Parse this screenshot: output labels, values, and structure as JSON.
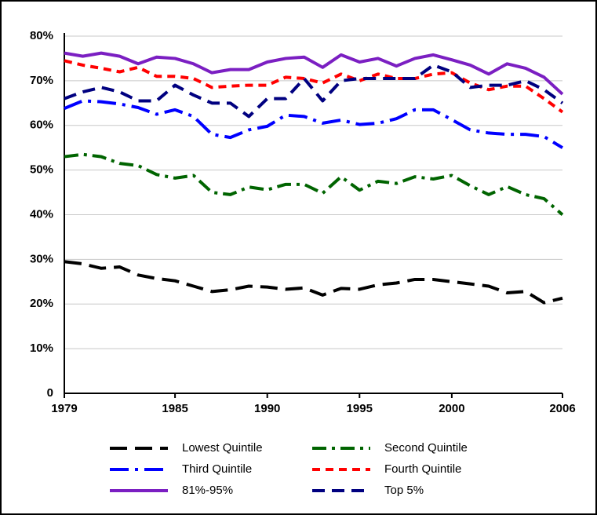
{
  "chart_data": {
    "type": "line",
    "x": [
      1979,
      1980,
      1981,
      1982,
      1983,
      1984,
      1985,
      1986,
      1987,
      1988,
      1989,
      1990,
      1991,
      1992,
      1993,
      1994,
      1995,
      1996,
      1997,
      1998,
      1999,
      2000,
      2001,
      2002,
      2003,
      2004,
      2005,
      2006
    ],
    "xlim": [
      1979,
      2006
    ],
    "xticks": [
      1979,
      1985,
      1990,
      1995,
      2000,
      2006
    ],
    "ylim": [
      0,
      80
    ],
    "yticks": [
      0,
      {
        "value": 10,
        "label": "10%"
      },
      {
        "value": 20,
        "label": "20%"
      },
      {
        "value": 30,
        "label": "30%"
      },
      {
        "value": 40,
        "label": "40%"
      },
      {
        "value": 50,
        "label": "50%"
      },
      {
        "value": 60,
        "label": "60%"
      },
      {
        "value": 70,
        "label": "70%"
      },
      {
        "value": 80,
        "label": "80%"
      }
    ],
    "grid": true,
    "legend": "bottom",
    "series": [
      {
        "name": "Lowest Quintile",
        "color": "#000000",
        "values": [
          29.5,
          29,
          28,
          28.3,
          26.5,
          25.7,
          25.2,
          24,
          22.8,
          23.2,
          24,
          23.8,
          23.3,
          23.6,
          22,
          23.5,
          23.3,
          24.3,
          24.7,
          25.5,
          25.5,
          25,
          24.5,
          24,
          22.5,
          22.8,
          20.3,
          21.3
        ]
      },
      {
        "name": "Second Quintile",
        "color": "#006400",
        "values": [
          53,
          53.5,
          53,
          51.5,
          51,
          49,
          48.2,
          48.8,
          45,
          44.5,
          46.2,
          45.6,
          46.8,
          46.8,
          44.8,
          48.5,
          45.5,
          47.5,
          47,
          48.5,
          48,
          48.8,
          46.5,
          44.5,
          46.3,
          44.5,
          43.6,
          40
        ]
      },
      {
        "name": "Third Quintile",
        "color": "#0000ff",
        "values": [
          63.8,
          65.5,
          65.3,
          64.8,
          64,
          62.5,
          63.5,
          62,
          58,
          57.3,
          59,
          59.8,
          62.3,
          62,
          60.5,
          61.2,
          60.2,
          60.5,
          61.5,
          63.5,
          63.5,
          61.3,
          59,
          58.3,
          58,
          58,
          57.5,
          55
        ]
      },
      {
        "name": "Fourth Quintile",
        "color": "#ff0000",
        "values": [
          74.5,
          73.5,
          72.8,
          72,
          73,
          71,
          71,
          70.5,
          68.5,
          68.8,
          69,
          69,
          70.8,
          70.5,
          69.5,
          71.5,
          70,
          71.5,
          70.5,
          70.5,
          71.5,
          71.8,
          69.5,
          68,
          68.8,
          68.8,
          66,
          63
        ]
      },
      {
        "name": "81%-95%",
        "color": "#7b1fc2",
        "values": [
          76.2,
          75.5,
          76.2,
          75.5,
          73.8,
          75.3,
          75,
          73.8,
          71.8,
          72.5,
          72.5,
          74.2,
          75,
          75.3,
          73,
          75.8,
          74.2,
          75,
          73.3,
          75,
          75.8,
          74.7,
          73.5,
          71.5,
          73.8,
          72.8,
          70.8,
          67
        ]
      },
      {
        "name": "Top 5%",
        "color": "#000080",
        "values": [
          66,
          67.5,
          68.5,
          67.5,
          65.5,
          65.5,
          69,
          66.8,
          65,
          65,
          62,
          66,
          66,
          70.5,
          65.5,
          70,
          70.5,
          70.5,
          70.5,
          70.5,
          73.5,
          72,
          68.5,
          69,
          69,
          70,
          68,
          65
        ]
      }
    ]
  }
}
